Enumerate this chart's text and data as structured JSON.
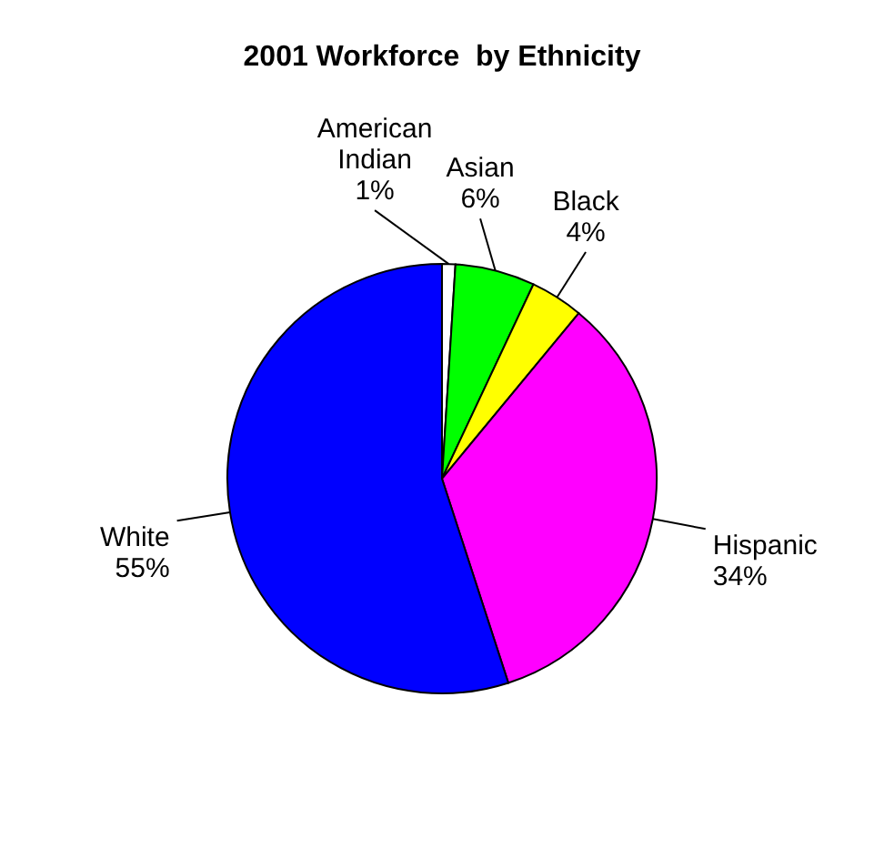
{
  "chart_data": {
    "type": "pie",
    "title": "2001 Workforce  by Ethnicity",
    "categories": [
      "American Indian",
      "Asian",
      "Black",
      "Hispanic",
      "White"
    ],
    "values": [
      1,
      6,
      4,
      34,
      55
    ],
    "value_labels": [
      "1%",
      "6%",
      "4%",
      "34%",
      "55%"
    ],
    "colors": [
      "#ffffff",
      "#00ff00",
      "#ffff00",
      "#ff00ff",
      "#0000ff"
    ]
  }
}
